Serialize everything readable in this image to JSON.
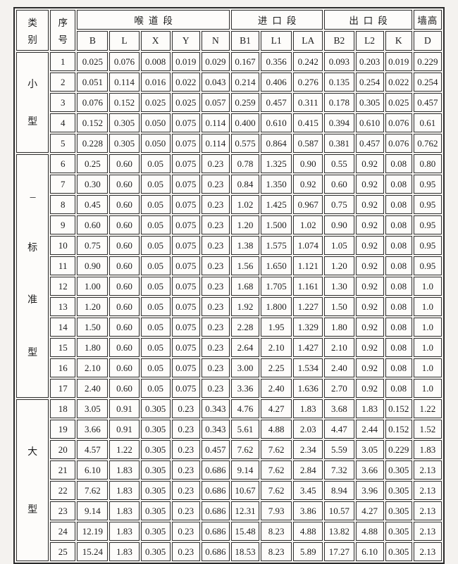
{
  "page": {
    "background": "#f4f2ef",
    "border_color": "#2b2b2b",
    "cell_background": "#fdfcfa",
    "text_color": "#1c1c1c"
  },
  "table": {
    "header": {
      "category_lines": [
        "类",
        "别"
      ],
      "index_lines": [
        "序",
        "号"
      ],
      "groups": [
        {
          "label": "喉道段",
          "span": 5
        },
        {
          "label": "进口段",
          "span": 3
        },
        {
          "label": "出口段",
          "span": 3
        },
        {
          "label": "墙高",
          "span": 1
        }
      ],
      "letters": [
        "B",
        "L",
        "X",
        "Y",
        "N",
        "B1",
        "L1",
        "LA",
        "B2",
        "L2",
        "K",
        "D"
      ]
    },
    "categories": [
      {
        "name": "小型",
        "chars": [
          "小",
          "型"
        ],
        "rows": [
          {
            "no": "1",
            "values": [
              "0.025",
              "0.076",
              "0.008",
              "0.019",
              "0.029",
              "0.167",
              "0.356",
              "0.242",
              "0.093",
              "0.203",
              "0.019",
              "0.229"
            ]
          },
          {
            "no": "2",
            "values": [
              "0.051",
              "0.114",
              "0.016",
              "0.022",
              "0.043",
              "0.214",
              "0.406",
              "0.276",
              "0.135",
              "0.254",
              "0.022",
              "0.254"
            ]
          },
          {
            "no": "3",
            "values": [
              "0.076",
              "0.152",
              "0.025",
              "0.025",
              "0.057",
              "0.259",
              "0.457",
              "0.311",
              "0.178",
              "0.305",
              "0.025",
              "0.457"
            ]
          },
          {
            "no": "4",
            "values": [
              "0.152",
              "0.305",
              "0.050",
              "0.075",
              "0.114",
              "0.400",
              "0.610",
              "0.415",
              "0.394",
              "0.610",
              "0.076",
              "0.61"
            ]
          },
          {
            "no": "5",
            "values": [
              "0.228",
              "0.305",
              "0.050",
              "0.075",
              "0.114",
              "0.575",
              "0.864",
              "0.587",
              "0.381",
              "0.457",
              "0.076",
              "0.762"
            ]
          }
        ]
      },
      {
        "name": "标准型",
        "chars": [
          "---",
          "标",
          "准",
          "型"
        ],
        "rows": [
          {
            "no": "6",
            "values": [
              "0.25",
              "0.60",
              "0.05",
              "0.075",
              "0.23",
              "0.78",
              "1.325",
              "0.90",
              "0.55",
              "0.92",
              "0.08",
              "0.80"
            ]
          },
          {
            "no": "7",
            "values": [
              "0.30",
              "0.60",
              "0.05",
              "0.075",
              "0.23",
              "0.84",
              "1.350",
              "0.92",
              "0.60",
              "0.92",
              "0.08",
              "0.95"
            ]
          },
          {
            "no": "8",
            "values": [
              "0.45",
              "0.60",
              "0.05",
              "0.075",
              "0.23",
              "1.02",
              "1.425",
              "0.967",
              "0.75",
              "0.92",
              "0.08",
              "0.95"
            ]
          },
          {
            "no": "9",
            "values": [
              "0.60",
              "0.60",
              "0.05",
              "0.075",
              "0.23",
              "1.20",
              "1.500",
              "1.02",
              "0.90",
              "0.92",
              "0.08",
              "0.95"
            ]
          },
          {
            "no": "10",
            "values": [
              "0.75",
              "0.60",
              "0.05",
              "0.075",
              "0.23",
              "1.38",
              "1.575",
              "1.074",
              "1.05",
              "0.92",
              "0.08",
              "0.95"
            ]
          },
          {
            "no": "11",
            "values": [
              "0.90",
              "0.60",
              "0.05",
              "0.075",
              "0.23",
              "1.56",
              "1.650",
              "1.121",
              "1.20",
              "0.92",
              "0.08",
              "0.95"
            ]
          },
          {
            "no": "12",
            "values": [
              "1.00",
              "0.60",
              "0.05",
              "0.075",
              "0.23",
              "1.68",
              "1.705",
              "1.161",
              "1.30",
              "0.92",
              "0.08",
              "1.0"
            ]
          },
          {
            "no": "13",
            "values": [
              "1.20",
              "0.60",
              "0.05",
              "0.075",
              "0.23",
              "1.92",
              "1.800",
              "1.227",
              "1.50",
              "0.92",
              "0.08",
              "1.0"
            ]
          },
          {
            "no": "14",
            "values": [
              "1.50",
              "0.60",
              "0.05",
              "0.075",
              "0.23",
              "2.28",
              "1.95",
              "1.329",
              "1.80",
              "0.92",
              "0.08",
              "1.0"
            ]
          },
          {
            "no": "15",
            "values": [
              "1.80",
              "0.60",
              "0.05",
              "0.075",
              "0.23",
              "2.64",
              "2.10",
              "1.427",
              "2.10",
              "0.92",
              "0.08",
              "1.0"
            ]
          },
          {
            "no": "16",
            "values": [
              "2.10",
              "0.60",
              "0.05",
              "0.075",
              "0.23",
              "3.00",
              "2.25",
              "1.534",
              "2.40",
              "0.92",
              "0.08",
              "1.0"
            ]
          },
          {
            "no": "17",
            "values": [
              "2.40",
              "0.60",
              "0.05",
              "0.075",
              "0.23",
              "3.36",
              "2.40",
              "1.636",
              "2.70",
              "0.92",
              "0.08",
              "1.0"
            ]
          }
        ]
      },
      {
        "name": "大型",
        "chars": [
          "大",
          "型"
        ],
        "rows": [
          {
            "no": "18",
            "values": [
              "3.05",
              "0.91",
              "0.305",
              "0.23",
              "0.343",
              "4.76",
              "4.27",
              "1.83",
              "3.68",
              "1.83",
              "0.152",
              "1.22"
            ]
          },
          {
            "no": "19",
            "values": [
              "3.66",
              "0.91",
              "0.305",
              "0.23",
              "0.343",
              "5.61",
              "4.88",
              "2.03",
              "4.47",
              "2.44",
              "0.152",
              "1.52"
            ]
          },
          {
            "no": "20",
            "values": [
              "4.57",
              "1.22",
              "0.305",
              "0.23",
              "0.457",
              "7.62",
              "7.62",
              "2.34",
              "5.59",
              "3.05",
              "0.229",
              "1.83"
            ]
          },
          {
            "no": "21",
            "values": [
              "6.10",
              "1.83",
              "0.305",
              "0.23",
              "0.686",
              "9.14",
              "7.62",
              "2.84",
              "7.32",
              "3.66",
              "0.305",
              "2.13"
            ]
          },
          {
            "no": "22",
            "values": [
              "7.62",
              "1.83",
              "0.305",
              "0.23",
              "0.686",
              "10.67",
              "7.62",
              "3.45",
              "8.94",
              "3.96",
              "0.305",
              "2.13"
            ]
          },
          {
            "no": "23",
            "values": [
              "9.14",
              "1.83",
              "0.305",
              "0.23",
              "0.686",
              "12.31",
              "7.93",
              "3.86",
              "10.57",
              "4.27",
              "0.305",
              "2.13"
            ]
          },
          {
            "no": "24",
            "values": [
              "12.19",
              "1.83",
              "0.305",
              "0.23",
              "0.686",
              "15.48",
              "8.23",
              "4.88",
              "13.82",
              "4.88",
              "0.305",
              "2.13"
            ]
          },
          {
            "no": "25",
            "values": [
              "15.24",
              "1.83",
              "0.305",
              "0.23",
              "0.686",
              "18.53",
              "8.23",
              "5.89",
              "17.27",
              "6.10",
              "0.305",
              "2.13"
            ]
          }
        ]
      }
    ]
  }
}
